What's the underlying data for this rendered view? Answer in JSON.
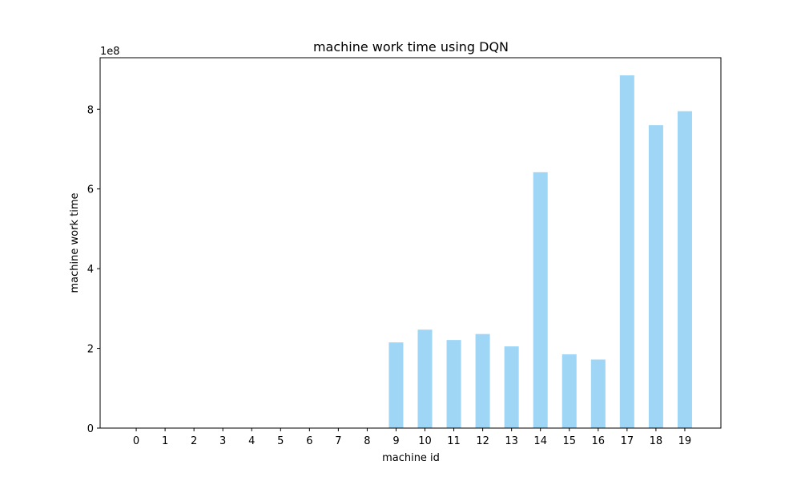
{
  "chart_data": {
    "type": "bar",
    "title": "machine work time using DQN",
    "xlabel": "machine id",
    "ylabel": "machine work time",
    "y_scale_label": "1e8",
    "categories": [
      "0",
      "1",
      "2",
      "3",
      "4",
      "5",
      "6",
      "7",
      "8",
      "9",
      "10",
      "11",
      "12",
      "13",
      "14",
      "15",
      "16",
      "17",
      "18",
      "19"
    ],
    "values": [
      0,
      0,
      0,
      0,
      0,
      0,
      0,
      0,
      0,
      215000000,
      247000000,
      221000000,
      236000000,
      205000000,
      642000000,
      185000000,
      172000000,
      885000000,
      760000000,
      795000000
    ],
    "y_ticks": [
      0,
      200000000,
      400000000,
      600000000,
      800000000
    ],
    "y_tick_labels": [
      "0",
      "2",
      "4",
      "6",
      "8"
    ],
    "ylim": [
      0,
      929250000
    ],
    "bar_color": "#9fd6f6",
    "grid": false,
    "legend": "none"
  }
}
